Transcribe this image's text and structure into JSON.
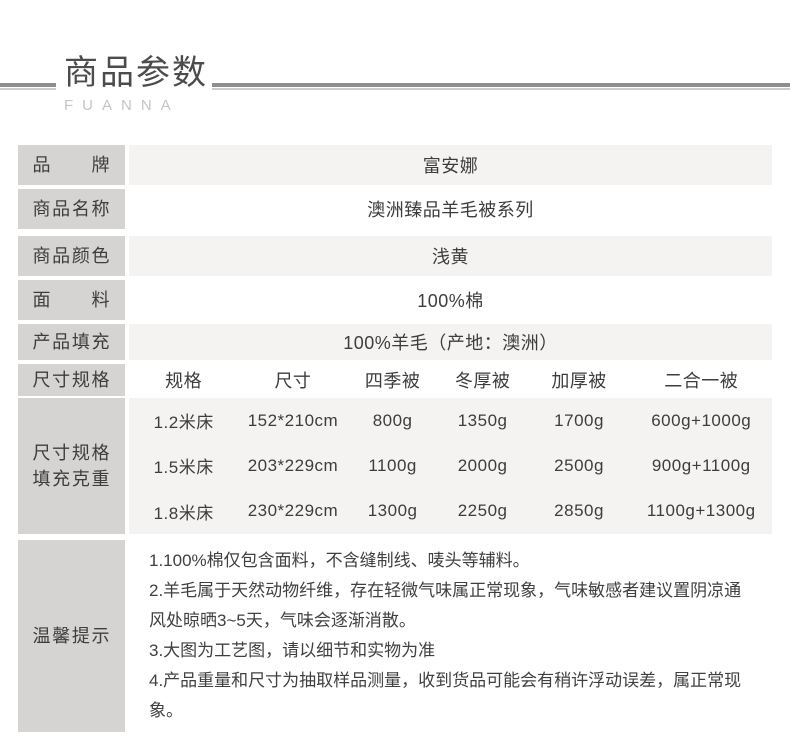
{
  "header": {
    "title": "商品参数",
    "subtitle": "FUANNA"
  },
  "table": {
    "rows": [
      {
        "label": "品牌",
        "value": "富安娜"
      },
      {
        "label": "商品名称",
        "value": "澳洲臻品羊毛被系列"
      },
      {
        "label": "商品颜色",
        "value": "浅黄"
      },
      {
        "label": "面料",
        "value": "100%棉"
      },
      {
        "label": "产品填充",
        "value": "100%羊毛（产地：澳洲）"
      }
    ],
    "size_section": {
      "header_label": "尺寸规格",
      "columns": [
        "规格",
        "尺寸",
        "四季被",
        "冬厚被",
        "加厚被",
        "二合一被"
      ],
      "body_label_line1": "尺寸规格",
      "body_label_line2": "填充克重",
      "rows": [
        [
          "1.2米床",
          "152*210cm",
          "800g",
          "1350g",
          "1700g",
          "600g+1000g"
        ],
        [
          "1.5米床",
          "203*229cm",
          "1100g",
          "2000g",
          "2500g",
          "900g+1100g"
        ],
        [
          "1.8米床",
          "230*229cm",
          "1300g",
          "2250g",
          "2850g",
          "1100g+1300g"
        ]
      ]
    },
    "tips": {
      "label": "温馨提示",
      "items": [
        "1.100%棉仅包含面料，不含缝制线、唛头等辅料。",
        "2.羊毛属于天然动物纤维，存在轻微气味属正常现象，气味敏感者建议置阴凉通风处晾晒3~5天，气味会逐渐消散。",
        "3.大图为工艺图，请以细节和实物为准",
        "4.产品重量和尺寸为抽取样品测量，收到货品可能会有稍许浮动误差，属正常现象。"
      ]
    }
  },
  "colors": {
    "label_bg": "#d6d4d3",
    "value_bg_light": "#f5f3f1",
    "value_bg_white": "#ffffff",
    "text": "#3d3d3d",
    "title": "#4c4c4e",
    "subtitle": "#c4c4c4",
    "rule_dark": "#8f8f8f",
    "rule_light": "#cccccc"
  }
}
